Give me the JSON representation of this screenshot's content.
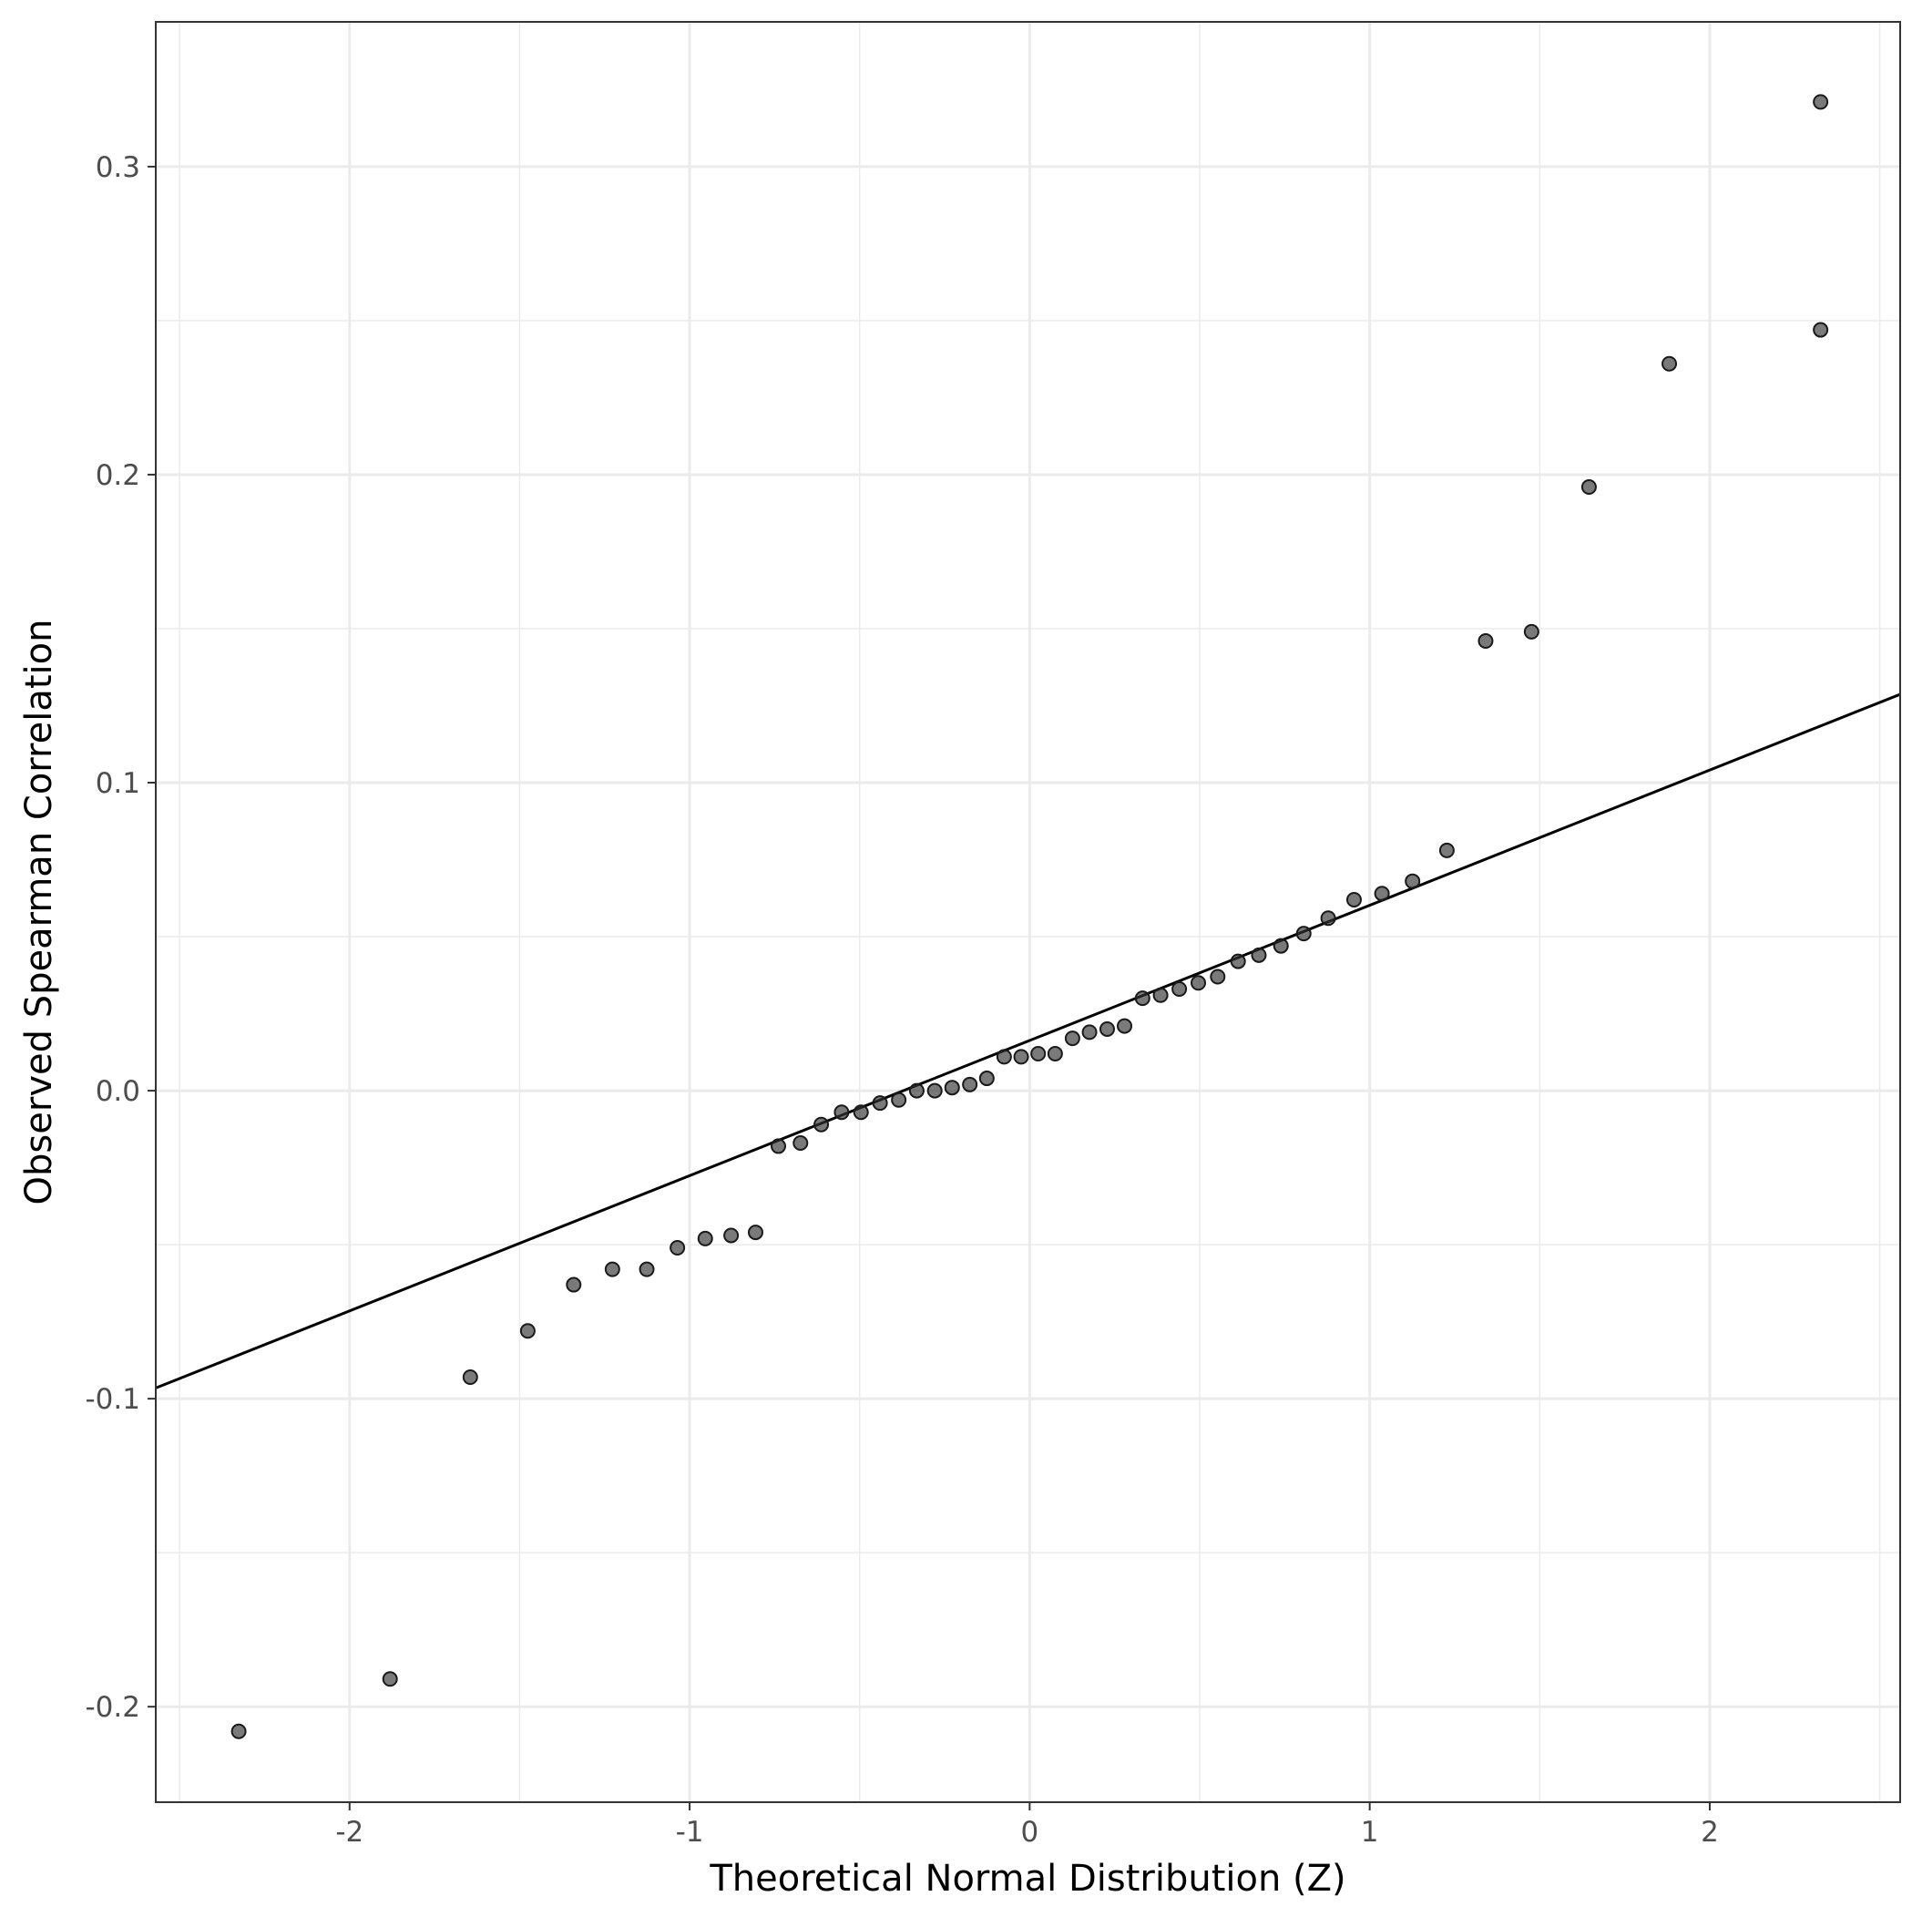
{
  "chart_data": {
    "type": "scatter",
    "title": "",
    "xlabel": "Theoretical Normal Distribution (Z)",
    "ylabel": "Observed Spearman Correlation",
    "xlim": [
      -2.57,
      2.56
    ],
    "ylim": [
      -0.231,
      0.347
    ],
    "x_ticks": [
      -2,
      -1,
      0,
      1,
      2
    ],
    "x_tick_labels": [
      "-2",
      "-1",
      "0",
      "1",
      "2"
    ],
    "y_ticks": [
      -0.2,
      -0.1,
      0.0,
      0.1,
      0.2,
      0.3
    ],
    "y_tick_labels": [
      "-0.2",
      "-0.1",
      "0.0",
      "0.1",
      "0.2",
      "0.3"
    ],
    "grid": true,
    "legend": "none",
    "point_color": "#333333",
    "line_color": "#000000",
    "reference_line": {
      "intercept": 0.0163,
      "slope": 0.0439
    },
    "points": [
      {
        "x": -2.326,
        "y": -0.208
      },
      {
        "x": -1.881,
        "y": -0.191
      },
      {
        "x": -1.645,
        "y": -0.093
      },
      {
        "x": -1.476,
        "y": -0.078
      },
      {
        "x": -1.341,
        "y": -0.063
      },
      {
        "x": -1.227,
        "y": -0.058
      },
      {
        "x": -1.126,
        "y": -0.058
      },
      {
        "x": -1.036,
        "y": -0.051
      },
      {
        "x": -0.954,
        "y": -0.048
      },
      {
        "x": -0.878,
        "y": -0.047
      },
      {
        "x": -0.806,
        "y": -0.046
      },
      {
        "x": -0.739,
        "y": -0.018
      },
      {
        "x": -0.674,
        "y": -0.017
      },
      {
        "x": -0.613,
        "y": -0.011
      },
      {
        "x": -0.553,
        "y": -0.007
      },
      {
        "x": -0.496,
        "y": -0.007
      },
      {
        "x": -0.44,
        "y": -0.004
      },
      {
        "x": -0.385,
        "y": -0.003
      },
      {
        "x": -0.332,
        "y": 0.0
      },
      {
        "x": -0.279,
        "y": 0.0
      },
      {
        "x": -0.228,
        "y": 0.001
      },
      {
        "x": -0.176,
        "y": 0.002
      },
      {
        "x": -0.126,
        "y": 0.004
      },
      {
        "x": -0.075,
        "y": 0.011
      },
      {
        "x": -0.025,
        "y": 0.011
      },
      {
        "x": 0.025,
        "y": 0.012
      },
      {
        "x": 0.075,
        "y": 0.012
      },
      {
        "x": 0.126,
        "y": 0.017
      },
      {
        "x": 0.176,
        "y": 0.019
      },
      {
        "x": 0.228,
        "y": 0.02
      },
      {
        "x": 0.279,
        "y": 0.021
      },
      {
        "x": 0.332,
        "y": 0.03
      },
      {
        "x": 0.385,
        "y": 0.031
      },
      {
        "x": 0.44,
        "y": 0.033
      },
      {
        "x": 0.496,
        "y": 0.035
      },
      {
        "x": 0.553,
        "y": 0.037
      },
      {
        "x": 0.613,
        "y": 0.042
      },
      {
        "x": 0.674,
        "y": 0.044
      },
      {
        "x": 0.739,
        "y": 0.047
      },
      {
        "x": 0.806,
        "y": 0.051
      },
      {
        "x": 0.878,
        "y": 0.056
      },
      {
        "x": 0.954,
        "y": 0.062
      },
      {
        "x": 1.036,
        "y": 0.064
      },
      {
        "x": 1.126,
        "y": 0.068
      },
      {
        "x": 1.227,
        "y": 0.078
      },
      {
        "x": 1.341,
        "y": 0.146
      },
      {
        "x": 1.476,
        "y": 0.149
      },
      {
        "x": 1.645,
        "y": 0.196
      },
      {
        "x": 1.881,
        "y": 0.236
      },
      {
        "x": 2.326,
        "y": 0.247
      },
      {
        "x": 2.326,
        "y": 0.321
      }
    ]
  }
}
